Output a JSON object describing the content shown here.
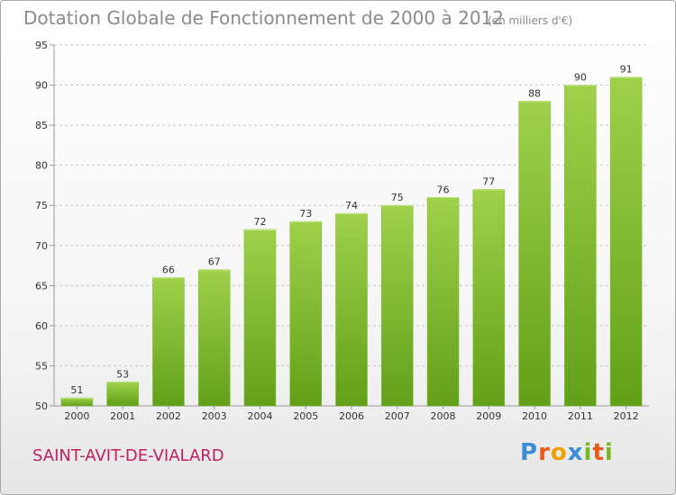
{
  "header": {
    "title": "Dotation Globale de Fonctionnement de 2000 à 2012",
    "unit": "(en milliers d'€)"
  },
  "footer": {
    "commune": "SAINT-AVIT-DE-VIALARD",
    "logo_letters": [
      "P",
      "r",
      "o",
      "x",
      "i",
      "t",
      "i"
    ],
    "logo_colors": [
      "#3a8ed8",
      "#e8591a",
      "#f0a000",
      "#3a8ed8",
      "#78b82a",
      "#e8591a",
      "#78b82a"
    ]
  },
  "chart_data": {
    "type": "bar",
    "title": "Dotation Globale de Fonctionnement de 2000 à 2012",
    "categories": [
      "2000",
      "2001",
      "2002",
      "2003",
      "2004",
      "2005",
      "2006",
      "2007",
      "2008",
      "2009",
      "2010",
      "2011",
      "2012"
    ],
    "values": [
      51,
      53,
      66,
      67,
      72,
      73,
      74,
      75,
      76,
      77,
      88,
      90,
      91
    ],
    "ylim": [
      50,
      95
    ],
    "yticks": [
      50,
      55,
      60,
      65,
      70,
      75,
      80,
      85,
      90,
      95
    ],
    "grid": true,
    "bar_color_top": "#9fd14a",
    "bar_color_bottom": "#62a01a"
  }
}
